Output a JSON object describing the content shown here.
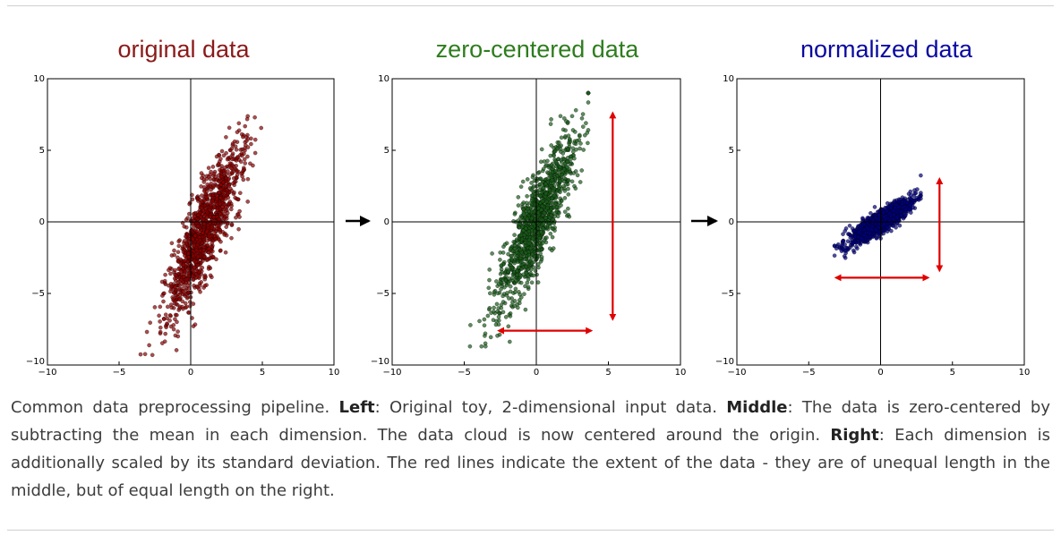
{
  "chart_data": [
    {
      "type": "scatter",
      "title": "original data",
      "xlabel": "",
      "ylabel": "",
      "xlim": [
        -10,
        10
      ],
      "ylim": [
        -10,
        10
      ],
      "xticks": [
        "−10",
        "−5",
        "0",
        "5",
        "10"
      ],
      "yticks": [
        "10",
        "5",
        "0",
        "−5",
        "−10"
      ],
      "grid": false,
      "axes_lines_through_origin": true,
      "point_color": "#8b0000",
      "cloud": {
        "center": [
          1.0,
          -0.5
        ],
        "std_major": 3.3,
        "std_minor": 0.65,
        "angle_deg": 68,
        "n": 1200
      },
      "x_range": [
        -3.5,
        5.2
      ],
      "y_range": [
        -9.3,
        7.6
      ]
    },
    {
      "type": "scatter",
      "title": "zero-centered data",
      "xlabel": "",
      "ylabel": "",
      "xlim": [
        -10,
        10
      ],
      "ylim": [
        -10,
        10
      ],
      "xticks": [
        "−10",
        "−5",
        "0",
        "5",
        "10"
      ],
      "yticks": [
        "10",
        "5",
        "0",
        "−5",
        "−10"
      ],
      "grid": false,
      "axes_lines_through_origin": true,
      "point_color": "#1a5c1a",
      "cloud": {
        "center": [
          0,
          0
        ],
        "std_major": 3.3,
        "std_minor": 0.65,
        "angle_deg": 68,
        "n": 1200
      },
      "x_range": [
        -4.6,
        3.6
      ],
      "y_range": [
        -8.7,
        9.0
      ],
      "extent_arrows": [
        {
          "axis": "x",
          "from": -2.6,
          "to": 3.8,
          "at": -7.6
        },
        {
          "axis": "y",
          "from": -6.8,
          "to": 7.6,
          "at": 5.3
        }
      ]
    },
    {
      "type": "scatter",
      "title": "normalized data",
      "xlabel": "",
      "ylabel": "",
      "xlim": [
        -10,
        10
      ],
      "ylim": [
        -10,
        10
      ],
      "xticks": [
        "−10",
        "−5",
        "0",
        "5",
        "10"
      ],
      "yticks": [
        "10",
        "5",
        "0",
        "−5",
        "−10"
      ],
      "grid": false,
      "axes_lines_through_origin": true,
      "point_color": "#000080",
      "cloud": {
        "center": [
          0,
          0
        ],
        "std_major": 1.35,
        "std_minor": 0.32,
        "angle_deg": 34,
        "n": 1200
      },
      "x_range": [
        -3.2,
        2.8
      ],
      "y_range": [
        -3.0,
        3.5
      ],
      "extent_arrows": [
        {
          "axis": "x",
          "from": -3.1,
          "to": 3.3,
          "at": -3.9
        },
        {
          "axis": "y",
          "from": -3.4,
          "to": 3.0,
          "at": 4.1
        }
      ]
    }
  ],
  "style": {
    "title_colors": [
      "#8b1a1a",
      "#2e7d1e",
      "#0a0aa0"
    ],
    "arrow_color": "#e00000",
    "between_arrow_color": "#000000"
  },
  "caption": {
    "p1": "Common data preprocessing pipeline. ",
    "left_label": "Left",
    "p2": ": Original toy, 2-dimensional input data. ",
    "middle_label": "Middle",
    "p3": ": The data is zero-centered by subtracting the mean in each dimension. The data cloud is now centered around the origin. ",
    "right_label": "Right",
    "p4": ": Each dimension is additionally scaled by its standard deviation. The red lines indicate the extent of the data - they are of unequal length in the middle, but of equal length on the right."
  }
}
